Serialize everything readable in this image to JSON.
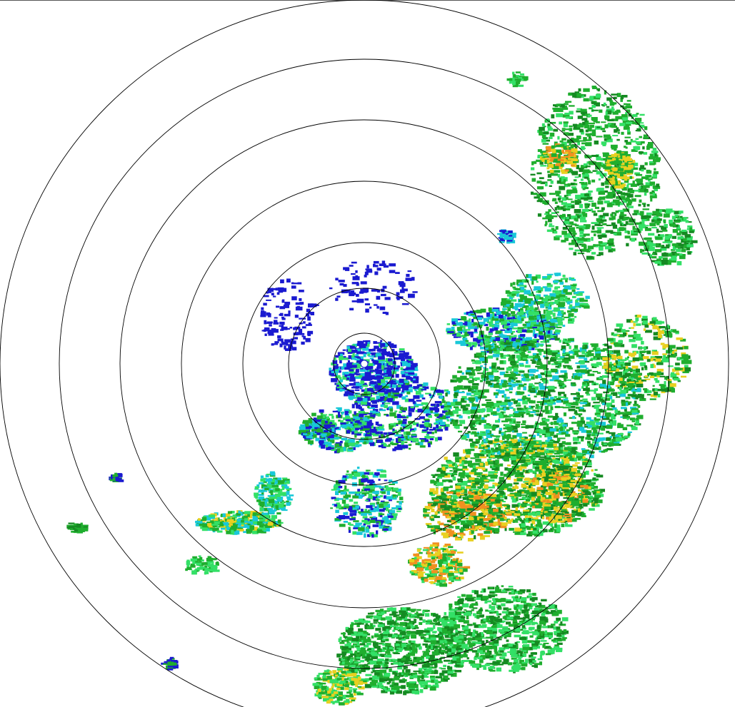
{
  "display": {
    "type": "radar-ppi-reflectivity",
    "range_ring_count": 7,
    "ring_color": "#000000",
    "background": "#ffffff"
  },
  "palette": {
    "weak": "#1a1ad0",
    "light": "#19c8d8",
    "light_green": "#33e066",
    "moderate": "#1fae2e",
    "dark_green": "#158a22",
    "yellow": "#e8d020",
    "orange": "#f09020",
    "red": "#e02010"
  }
}
